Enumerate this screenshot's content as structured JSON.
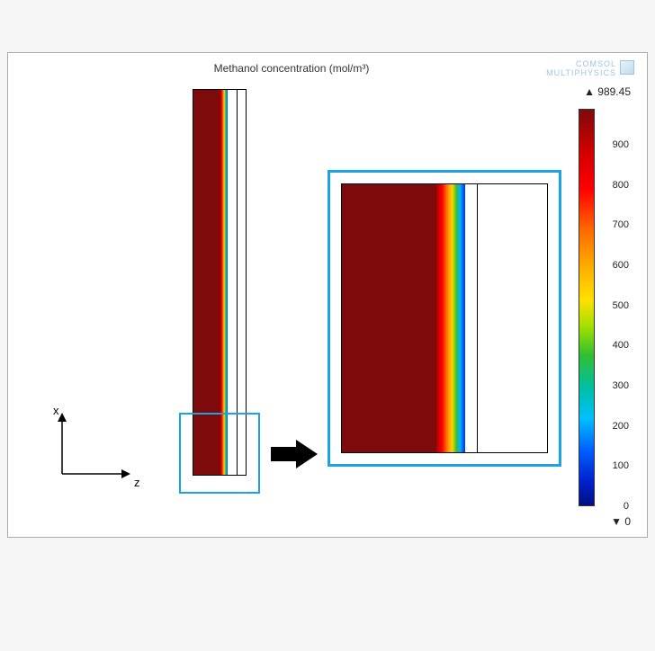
{
  "title": "Methanol concentration (mol/m³)",
  "brand": {
    "line1": "COMSOL",
    "line2": "MULTIPHYSICS"
  },
  "max_label": "▲ 989.45",
  "min_label": "▼ 0",
  "axes": {
    "x": "x",
    "z": "z"
  },
  "colorbar": {
    "gradient": [
      {
        "stop": 0,
        "color": "#7d0b0b"
      },
      {
        "stop": 10,
        "color": "#cc0000"
      },
      {
        "stop": 20,
        "color": "#ff0000"
      },
      {
        "stop": 30,
        "color": "#ff6600"
      },
      {
        "stop": 40,
        "color": "#ffb000"
      },
      {
        "stop": 48,
        "color": "#ffe000"
      },
      {
        "stop": 55,
        "color": "#a0e000"
      },
      {
        "stop": 62,
        "color": "#30c030"
      },
      {
        "stop": 70,
        "color": "#00c0a0"
      },
      {
        "stop": 78,
        "color": "#00c0ff"
      },
      {
        "stop": 86,
        "color": "#0060ff"
      },
      {
        "stop": 94,
        "color": "#0020cc"
      },
      {
        "stop": 100,
        "color": "#001080"
      }
    ],
    "min": 0,
    "max": 989.45,
    "ticks": [
      900,
      800,
      700,
      600,
      500,
      400,
      300,
      200,
      100,
      0
    ]
  },
  "highlight_color": "#1ba3e6",
  "model": {
    "concentration_color": "#7d0b0b",
    "gradient_colors": [
      "#aa0000",
      "#ff0000",
      "#ff8c00",
      "#ffd400",
      "#30c030",
      "#00b5ff",
      "#002bff"
    ],
    "background": "#ffffff"
  }
}
